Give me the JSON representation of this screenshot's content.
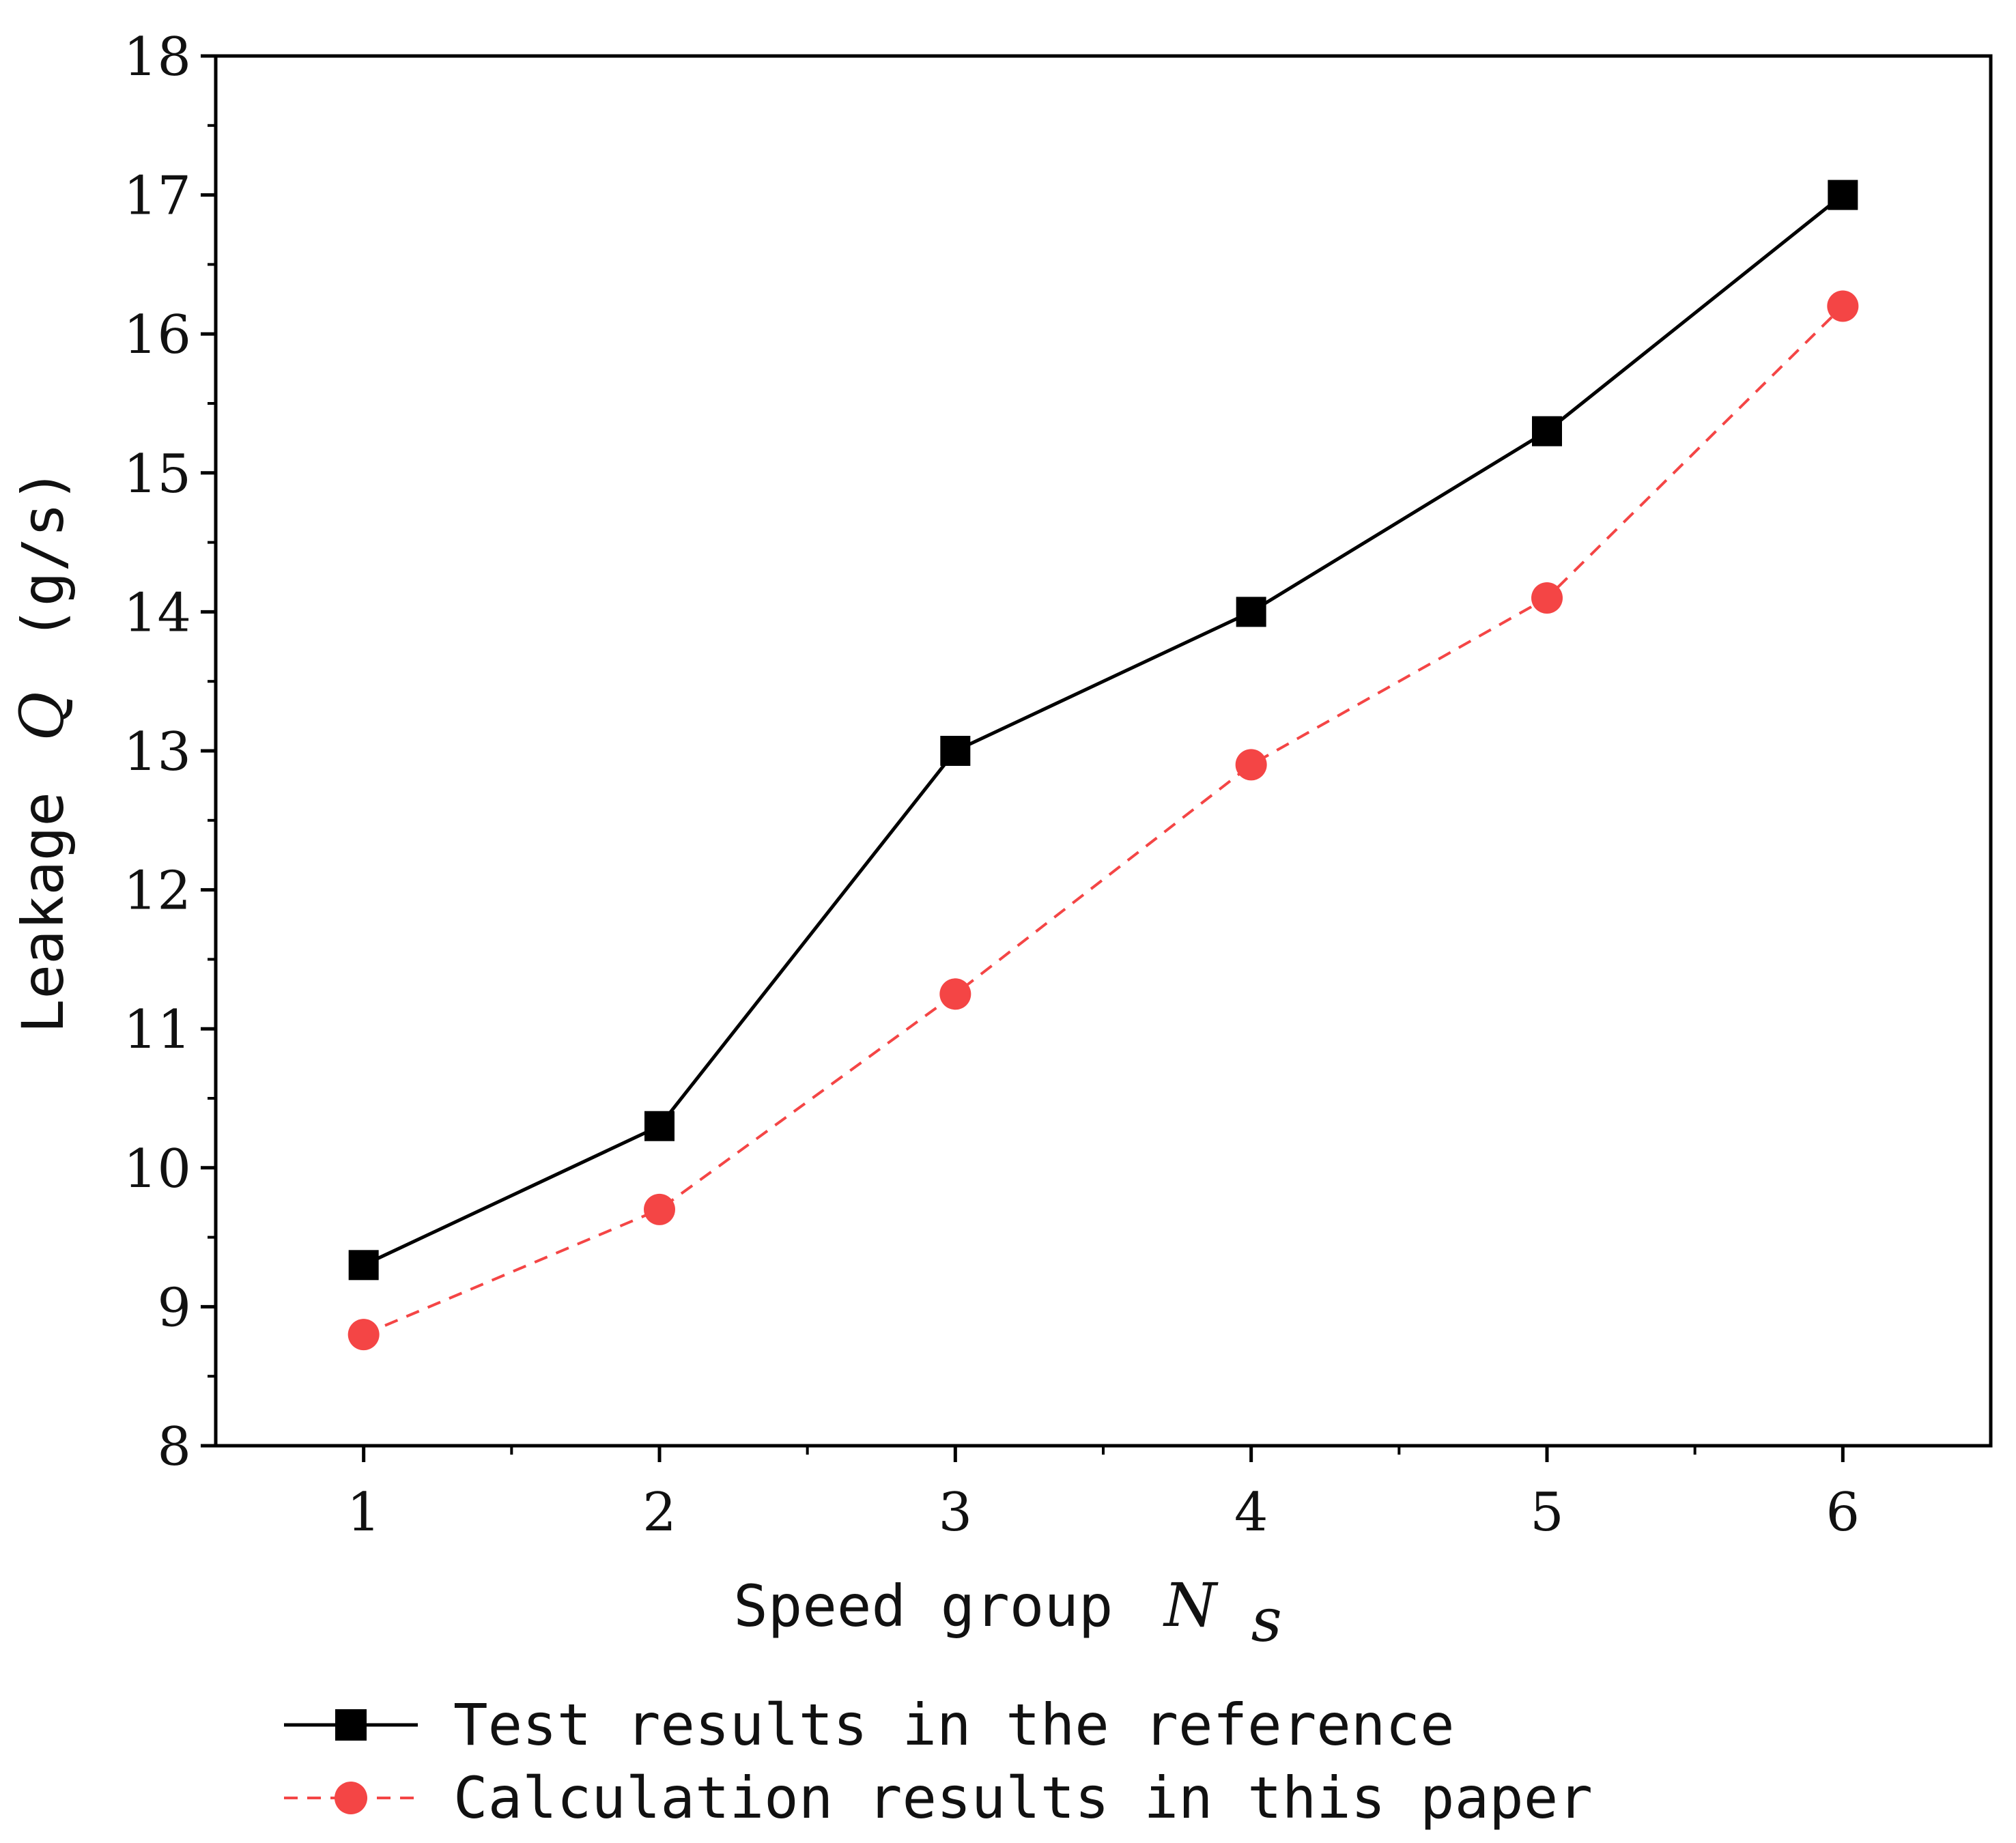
{
  "chart_data": {
    "type": "line",
    "x": [
      1,
      2,
      3,
      4,
      5,
      6
    ],
    "xlim": [
      0.5,
      6.5
    ],
    "ylim": [
      8,
      18
    ],
    "xticks": [
      "1",
      "2",
      "3",
      "4",
      "5",
      "6"
    ],
    "yticks": [
      "8",
      "9",
      "10",
      "11",
      "12",
      "13",
      "14",
      "15",
      "16",
      "17",
      "18"
    ],
    "xlabel": {
      "text": "Speed group",
      "var": "N",
      "sub": "s"
    },
    "ylabel": {
      "text": "Leakage",
      "var": "Q",
      "unit": "(g/s)"
    },
    "grid": false,
    "legend_position": "bottom",
    "series": [
      {
        "name": "Test results in the reference",
        "values": [
          9.3,
          10.3,
          13.0,
          14.0,
          15.3,
          17.0
        ],
        "color": "#000000",
        "marker": "square",
        "line_style": "solid"
      },
      {
        "name": "Calculation results in this paper",
        "values": [
          8.8,
          9.7,
          11.25,
          12.9,
          14.1,
          16.2
        ],
        "color": "#f44545",
        "marker": "circle",
        "line_style": "dashed"
      }
    ]
  }
}
